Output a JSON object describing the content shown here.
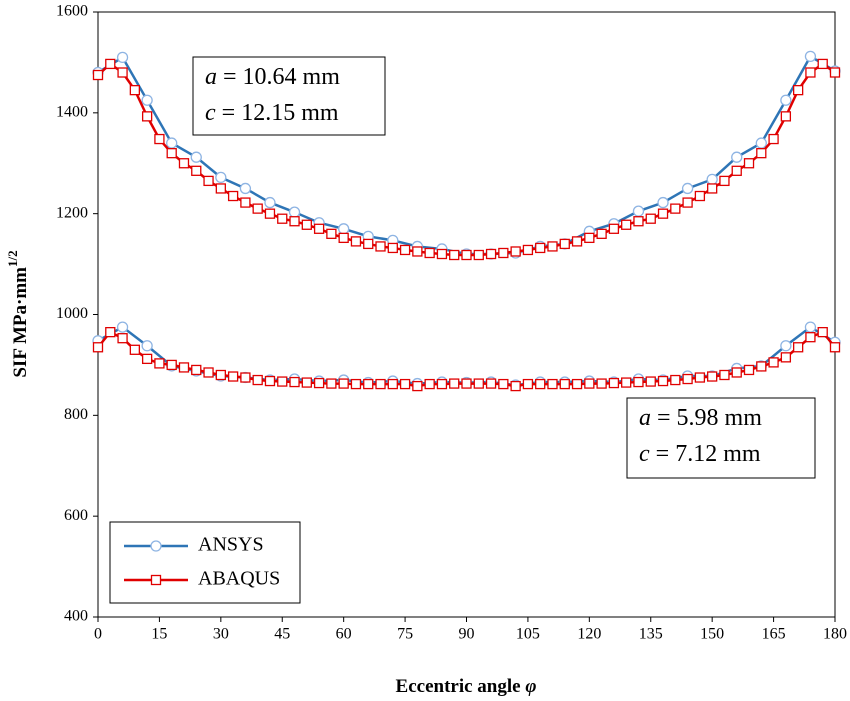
{
  "chart_data": {
    "type": "line",
    "xlabel": "Eccentric angle",
    "xlabel_symbol": "φ",
    "ylabel": "SIF MPa·mm",
    "ylabel_sup": "1/2",
    "xlim": [
      0,
      180
    ],
    "xticks": [
      0,
      15,
      30,
      45,
      60,
      75,
      90,
      105,
      120,
      135,
      150,
      165,
      180
    ],
    "ylim": [
      400,
      1600
    ],
    "yticks": [
      400,
      600,
      800,
      1000,
      1200,
      1400,
      1600
    ],
    "grid": false,
    "legend": "lower left",
    "annotations": [
      {
        "lines": [
          {
            "symbol": "a",
            "text": "= 10.64 mm"
          },
          {
            "symbol": "c",
            "text": "= 12.15 mm"
          }
        ]
      },
      {
        "lines": [
          {
            "symbol": "a",
            "text": "= 5.98 mm"
          },
          {
            "symbol": "c",
            "text": "= 7.12 mm"
          }
        ]
      }
    ],
    "series": [
      {
        "name": "ANSYS",
        "color": "#2e75b6",
        "marker": "circle",
        "x": [
          0,
          6,
          12,
          18,
          24,
          30,
          36,
          42,
          48,
          54,
          60,
          66,
          72,
          78,
          84,
          90,
          96,
          102,
          108,
          114,
          120,
          126,
          132,
          138,
          144,
          150,
          156,
          162,
          168,
          174,
          180
        ],
        "values": [
          1480,
          1510,
          1425,
          1340,
          1312,
          1272,
          1250,
          1222,
          1203,
          1182,
          1170,
          1155,
          1147,
          1135,
          1130,
          1120,
          1120,
          1122,
          1135,
          1140,
          1165,
          1180,
          1205,
          1222,
          1250,
          1268,
          1312,
          1340,
          1425,
          1512,
          1483
        ]
      },
      {
        "name": "ABAQUS",
        "color": "#e00000",
        "marker": "square",
        "x": [
          0,
          3,
          6,
          9,
          12,
          15,
          18,
          21,
          24,
          27,
          30,
          33,
          36,
          39,
          42,
          45,
          48,
          51,
          54,
          57,
          60,
          63,
          66,
          69,
          72,
          75,
          78,
          81,
          84,
          87,
          90,
          93,
          96,
          99,
          102,
          105,
          108,
          111,
          114,
          117,
          120,
          123,
          126,
          129,
          132,
          135,
          138,
          141,
          144,
          147,
          150,
          153,
          156,
          159,
          162,
          165,
          168,
          171,
          174,
          177,
          180
        ],
        "values": [
          1475,
          1497,
          1480,
          1445,
          1393,
          1348,
          1320,
          1300,
          1285,
          1265,
          1250,
          1235,
          1222,
          1210,
          1200,
          1190,
          1185,
          1178,
          1170,
          1160,
          1152,
          1145,
          1140,
          1135,
          1132,
          1128,
          1125,
          1122,
          1120,
          1118,
          1118,
          1118,
          1120,
          1122,
          1125,
          1128,
          1132,
          1135,
          1140,
          1145,
          1152,
          1160,
          1170,
          1178,
          1185,
          1190,
          1200,
          1210,
          1222,
          1235,
          1250,
          1265,
          1285,
          1300,
          1320,
          1348,
          1393,
          1445,
          1480,
          1497,
          1480
        ]
      },
      {
        "name": "ANSYS",
        "color": "#2e75b6",
        "marker": "circle",
        "x": [
          0,
          6,
          12,
          18,
          24,
          30,
          36,
          42,
          48,
          54,
          60,
          66,
          72,
          78,
          84,
          90,
          96,
          102,
          108,
          114,
          120,
          126,
          132,
          138,
          144,
          150,
          156,
          162,
          168,
          174,
          180
        ],
        "values": [
          948,
          975,
          938,
          898,
          888,
          878,
          875,
          870,
          872,
          868,
          870,
          865,
          868,
          863,
          866,
          865,
          866,
          860,
          866,
          866,
          868,
          866,
          872,
          870,
          878,
          878,
          893,
          898,
          938,
          975,
          945
        ]
      },
      {
        "name": "ABAQUS",
        "color": "#e00000",
        "marker": "square",
        "x": [
          0,
          3,
          6,
          9,
          12,
          15,
          18,
          21,
          24,
          27,
          30,
          33,
          36,
          39,
          42,
          45,
          48,
          51,
          54,
          57,
          60,
          63,
          66,
          69,
          72,
          75,
          78,
          81,
          84,
          87,
          90,
          93,
          96,
          99,
          102,
          105,
          108,
          111,
          114,
          117,
          120,
          123,
          126,
          129,
          132,
          135,
          138,
          141,
          144,
          147,
          150,
          153,
          156,
          159,
          162,
          165,
          168,
          171,
          174,
          177,
          180
        ],
        "values": [
          935,
          965,
          953,
          930,
          912,
          903,
          900,
          895,
          890,
          885,
          880,
          877,
          875,
          870,
          868,
          867,
          866,
          865,
          864,
          863,
          863,
          862,
          862,
          862,
          862,
          862,
          858,
          862,
          862,
          863,
          863,
          863,
          863,
          862,
          858,
          862,
          862,
          862,
          862,
          862,
          863,
          863,
          864,
          865,
          866,
          867,
          868,
          870,
          872,
          875,
          877,
          880,
          885,
          890,
          897,
          905,
          915,
          935,
          955,
          965,
          935
        ]
      }
    ]
  }
}
